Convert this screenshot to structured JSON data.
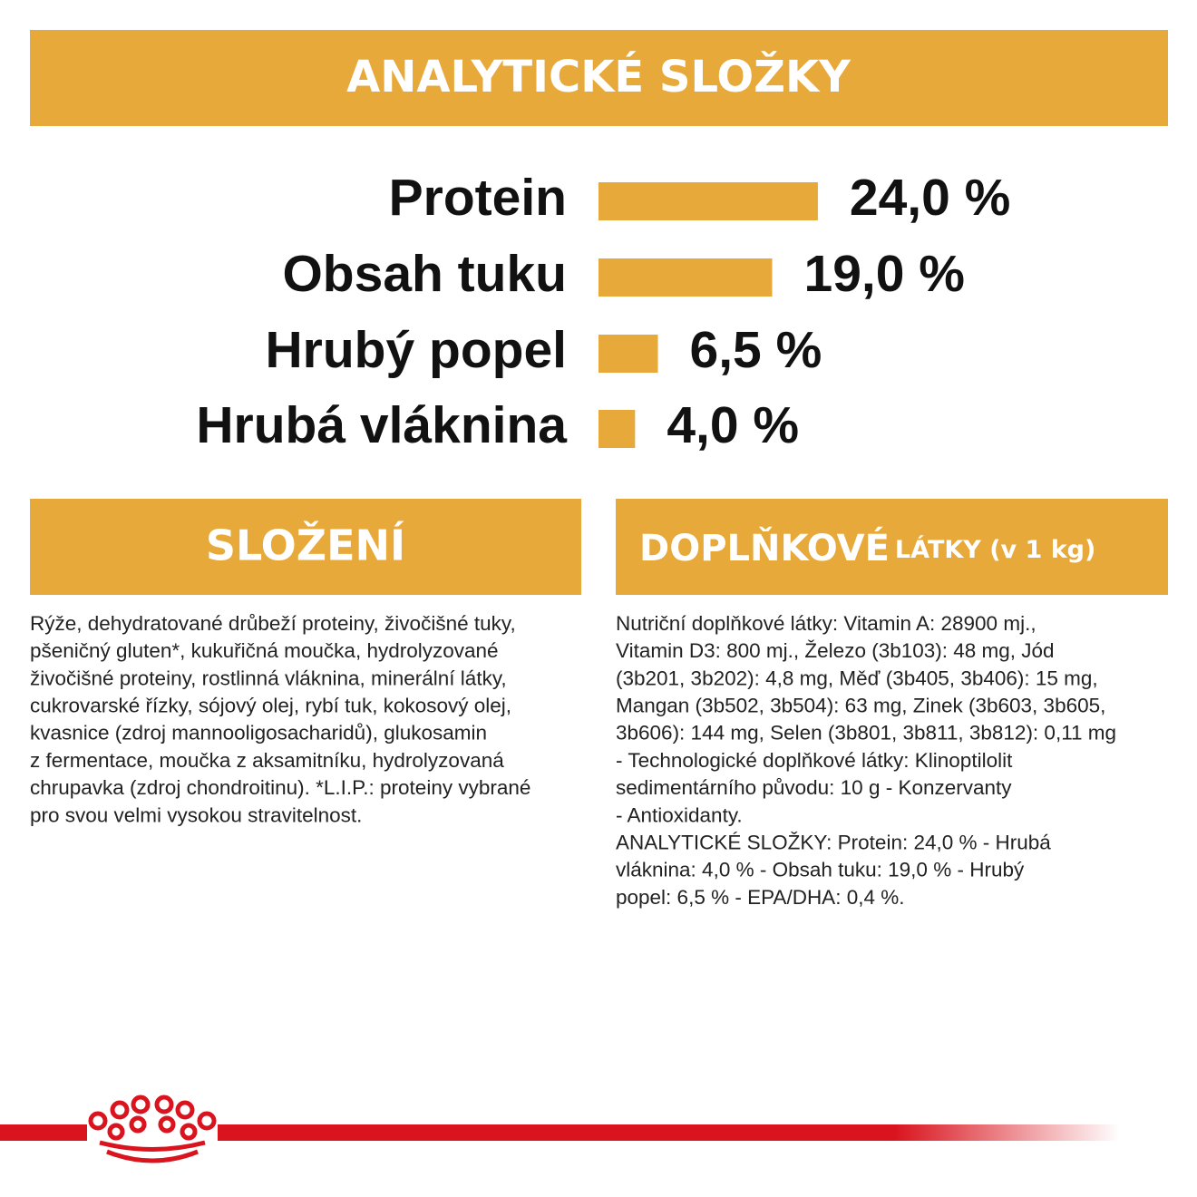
{
  "chart_data": {
    "type": "bar",
    "orientation": "horizontal",
    "title": "ANALYTICKÉ SLOŽKY",
    "categories": [
      "Protein",
      "Obsah tuku",
      "Hrubý popel",
      "Hrubá vláknina"
    ],
    "values": [
      24.0,
      19.0,
      6.5,
      4.0
    ],
    "value_labels": [
      "24,0 %",
      "19,0 %",
      "6,5 %",
      "4,0 %"
    ],
    "color": "#e8a93b"
  },
  "composition": {
    "title": "SLOŽENÍ",
    "lines": [
      "Rýže, dehydratované drůbeží proteiny, živočišné tuky,",
      "pšeničný gluten*, kukuřičná moučka, hydrolyzované",
      "živočišné proteiny, rostlinná vláknina, minerální látky,",
      "cukrovarské řízky, sójový olej, rybí tuk, kokosový olej,",
      "kvasnice (zdroj mannooligosacharidů), glukosamin",
      "z fermentace, moučka z aksamitníku, hydrolyzovaná",
      "chrupavka (zdroj chondroitinu). *L.I.P.: proteiny vybrané",
      "pro svou velmi vysokou stravitelnost."
    ]
  },
  "additives": {
    "title": "DOPLŇKOVÉ",
    "subtitle": "LÁTKY (v 1 kg)",
    "lines": [
      "Nutriční doplňkové látky: Vitamin A: 28900 mj.,",
      "Vitamin D3: 800 mj., Železo (3b103): 48 mg, Jód",
      "(3b201, 3b202): 4,8 mg, Měď (3b405, 3b406): 15 mg,",
      "Mangan (3b502, 3b504): 63 mg, Zinek (3b603, 3b605,",
      "3b606): 144 mg, Selen (3b801, 3b811, 3b812): 0,11 mg",
      "- Technologické doplňkové látky: Klinoptilolit",
      "sedimentárního původu: 10 g - Konzervanty",
      "- Antioxidanty.",
      "ANALYTICKÉ SLOŽKY: Protein: 24,0 % - Hrubá",
      "vláknina: 4,0 % - Obsah tuku: 19,0 % - Hrubý",
      "popel: 6,5 % - EPA/DHA: 0,4 %."
    ]
  }
}
